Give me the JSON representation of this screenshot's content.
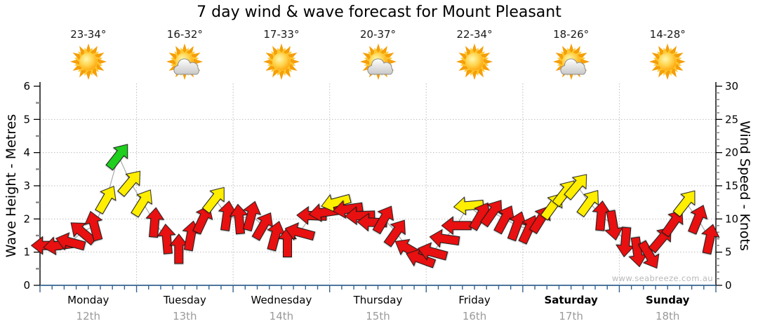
{
  "title": "7 day wind & wave forecast for Mount Pleasant",
  "watermark": "www.seabreeze.com.au",
  "axes": {
    "left_label": "Wave Height - Metres",
    "right_label": "Wind Speed - Knots",
    "left_ticks": [
      0,
      1,
      2,
      3,
      4,
      5,
      6
    ],
    "right_ticks": [
      0,
      5,
      10,
      15,
      20,
      25,
      30
    ]
  },
  "days": [
    {
      "name": "Monday",
      "date": "12th",
      "temp": "23-34°",
      "weather": "sunny",
      "bold": false
    },
    {
      "name": "Tuesday",
      "date": "13th",
      "temp": "16-32°",
      "weather": "partly-cloudy",
      "bold": false
    },
    {
      "name": "Wednesday",
      "date": "14th",
      "temp": "17-33°",
      "weather": "sunny",
      "bold": false
    },
    {
      "name": "Thursday",
      "date": "15th",
      "temp": "20-37°",
      "weather": "partly-cloudy",
      "bold": false
    },
    {
      "name": "Friday",
      "date": "16th",
      "temp": "22-34°",
      "weather": "sunny",
      "bold": false
    },
    {
      "name": "Saturday",
      "date": "17th",
      "temp": "18-26°",
      "weather": "partly-cloudy",
      "bold": true
    },
    {
      "name": "Sunday",
      "date": "18th",
      "temp": "14-28°",
      "weather": "sunny",
      "bold": true
    }
  ],
  "colors": {
    "red": "#e81010",
    "yellow": "#ffee00",
    "green": "#1ecf1e",
    "arrow_outline": "#1c1c1c",
    "grid": "#bdbdbd",
    "axis": "#000000",
    "bottom_axis": "#35638f",
    "minor_tick": "#8a8a8a",
    "connector": "#a8a8a8",
    "date_text": "#9a9a9a",
    "watermark_text": "#b9b9b9"
  },
  "chart_data": {
    "type": "wind-arrow-series",
    "title": "7 day wind & wave forecast for Mount Pleasant",
    "x_axis": "time, 3-hourly steps across 7 days (Monday 12th - Sunday 18th)",
    "ylabel_left": "Wave Height - Metres",
    "ylabel_right": "Wind Speed - Knots",
    "ylim_wave_metres": [
      0,
      6
    ],
    "ylim_wind_knots": [
      0,
      30
    ],
    "grid": "dotted horizontal each metre, dotted vertical each day boundary",
    "point_schema": "speed_knots = wind speed (right axis); dir_deg = direction arrow points, 0=up/N, 90=right/E; color = arrow fill by speed band",
    "points": [
      {
        "speed_knots": 6.0,
        "dir_deg": 270,
        "color": "red"
      },
      {
        "speed_knots": 6.0,
        "dir_deg": 262,
        "color": "red"
      },
      {
        "speed_knots": 6.5,
        "dir_deg": 285,
        "color": "red"
      },
      {
        "speed_knots": 8.0,
        "dir_deg": 310,
        "color": "red"
      },
      {
        "speed_knots": 9.0,
        "dir_deg": 345,
        "color": "red"
      },
      {
        "speed_knots": 13.0,
        "dir_deg": 30,
        "color": "yellow"
      },
      {
        "speed_knots": 19.5,
        "dir_deg": 38,
        "color": "green"
      },
      {
        "speed_knots": 15.5,
        "dir_deg": 40,
        "color": "yellow"
      },
      {
        "speed_knots": 12.5,
        "dir_deg": 32,
        "color": "yellow"
      },
      {
        "speed_knots": 9.5,
        "dir_deg": 5,
        "color": "red"
      },
      {
        "speed_knots": 7.0,
        "dir_deg": 355,
        "color": "red"
      },
      {
        "speed_knots": 5.5,
        "dir_deg": 0,
        "color": "red"
      },
      {
        "speed_knots": 7.5,
        "dir_deg": 10,
        "color": "red"
      },
      {
        "speed_knots": 10.0,
        "dir_deg": 25,
        "color": "red"
      },
      {
        "speed_knots": 13.0,
        "dir_deg": 38,
        "color": "yellow"
      },
      {
        "speed_knots": 10.5,
        "dir_deg": 8,
        "color": "red"
      },
      {
        "speed_knots": 10.0,
        "dir_deg": 355,
        "color": "red"
      },
      {
        "speed_knots": 10.5,
        "dir_deg": 15,
        "color": "red"
      },
      {
        "speed_knots": 9.0,
        "dir_deg": 30,
        "color": "red"
      },
      {
        "speed_knots": 7.5,
        "dir_deg": 15,
        "color": "red"
      },
      {
        "speed_knots": 6.5,
        "dir_deg": 0,
        "color": "red"
      },
      {
        "speed_knots": 8.0,
        "dir_deg": 285,
        "color": "red"
      },
      {
        "speed_knots": 10.5,
        "dir_deg": 272,
        "color": "red"
      },
      {
        "speed_knots": 11.0,
        "dir_deg": 262,
        "color": "red"
      },
      {
        "speed_knots": 12.5,
        "dir_deg": 255,
        "color": "yellow"
      },
      {
        "speed_knots": 11.5,
        "dir_deg": 262,
        "color": "red"
      },
      {
        "speed_knots": 10.5,
        "dir_deg": 268,
        "color": "red"
      },
      {
        "speed_knots": 9.5,
        "dir_deg": 272,
        "color": "red"
      },
      {
        "speed_knots": 10.0,
        "dir_deg": 30,
        "color": "red"
      },
      {
        "speed_knots": 8.0,
        "dir_deg": 35,
        "color": "red"
      },
      {
        "speed_knots": 5.5,
        "dir_deg": 300,
        "color": "red"
      },
      {
        "speed_knots": 4.0,
        "dir_deg": 290,
        "color": "red"
      },
      {
        "speed_knots": 5.0,
        "dir_deg": 285,
        "color": "red"
      },
      {
        "speed_knots": 7.0,
        "dir_deg": 278,
        "color": "red"
      },
      {
        "speed_knots": 9.0,
        "dir_deg": 270,
        "color": "red"
      },
      {
        "speed_knots": 12.0,
        "dir_deg": 265,
        "color": "yellow"
      },
      {
        "speed_knots": 10.5,
        "dir_deg": 30,
        "color": "red"
      },
      {
        "speed_knots": 11.0,
        "dir_deg": 35,
        "color": "red"
      },
      {
        "speed_knots": 10.0,
        "dir_deg": 28,
        "color": "red"
      },
      {
        "speed_knots": 9.0,
        "dir_deg": 20,
        "color": "red"
      },
      {
        "speed_knots": 8.5,
        "dir_deg": 25,
        "color": "red"
      },
      {
        "speed_knots": 10.0,
        "dir_deg": 32,
        "color": "red"
      },
      {
        "speed_knots": 12.0,
        "dir_deg": 36,
        "color": "yellow"
      },
      {
        "speed_knots": 14.0,
        "dir_deg": 38,
        "color": "yellow"
      },
      {
        "speed_knots": 15.0,
        "dir_deg": 40,
        "color": "yellow"
      },
      {
        "speed_knots": 12.5,
        "dir_deg": 36,
        "color": "yellow"
      },
      {
        "speed_knots": 10.5,
        "dir_deg": 5,
        "color": "red"
      },
      {
        "speed_knots": 9.0,
        "dir_deg": 170,
        "color": "red"
      },
      {
        "speed_knots": 6.5,
        "dir_deg": 185,
        "color": "red"
      },
      {
        "speed_knots": 5.0,
        "dir_deg": 172,
        "color": "red"
      },
      {
        "speed_knots": 4.5,
        "dir_deg": 150,
        "color": "red"
      },
      {
        "speed_knots": 7.0,
        "dir_deg": 40,
        "color": "red"
      },
      {
        "speed_knots": 9.5,
        "dir_deg": 35,
        "color": "red"
      },
      {
        "speed_knots": 12.5,
        "dir_deg": 38,
        "color": "yellow"
      },
      {
        "speed_knots": 10.0,
        "dir_deg": 22,
        "color": "red"
      },
      {
        "speed_knots": 7.0,
        "dir_deg": 12,
        "color": "red"
      }
    ]
  }
}
